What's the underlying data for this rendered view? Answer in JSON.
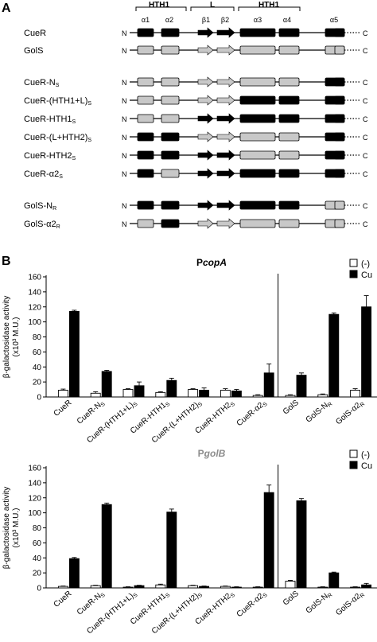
{
  "panel_a": {
    "label": "A",
    "domain_labels": {
      "hth1_left": "HTH1",
      "linker": "L",
      "hth1_right": "HTH1"
    },
    "element_labels": [
      "α1",
      "α2",
      "β1",
      "β2",
      "α3",
      "α4",
      "α5"
    ],
    "n_label": "N",
    "c_label": "C",
    "colors": {
      "cuer": "#000000",
      "gols": "#c8c8c8"
    },
    "rows": [
      {
        "label": "CueR",
        "segments": [
          "k",
          "k",
          "k",
          "k",
          "k",
          "k",
          "k",
          "k"
        ]
      },
      {
        "label": "GolS",
        "segments": [
          "g",
          "g",
          "g",
          "g",
          "g",
          "g",
          "g",
          "g"
        ]
      },
      {
        "label": "CueR-N",
        "sub": "S",
        "segments": [
          "g",
          "g",
          "g",
          "g",
          "g",
          "g",
          "k",
          "k"
        ]
      },
      {
        "label": "CueR-(HTH1+L)",
        "sub": "S",
        "segments": [
          "g",
          "g",
          "g",
          "g",
          "k",
          "k",
          "k",
          "k"
        ]
      },
      {
        "label": "CueR-HTH1",
        "sub": "S",
        "segments": [
          "g",
          "g",
          "k",
          "k",
          "k",
          "k",
          "k",
          "k"
        ]
      },
      {
        "label": "CueR-(L+HTH2)",
        "sub": "S",
        "segments": [
          "k",
          "k",
          "g",
          "g",
          "g",
          "g",
          "k",
          "k"
        ]
      },
      {
        "label": "CueR-HTH2",
        "sub": "S",
        "segments": [
          "k",
          "k",
          "k",
          "k",
          "g",
          "g",
          "k",
          "k"
        ]
      },
      {
        "label": "CueR-α2",
        "sub": "S",
        "segments": [
          "k",
          "g",
          "k",
          "k",
          "k",
          "k",
          "k",
          "k"
        ]
      },
      {
        "label": "GolS-N",
        "sub": "R",
        "segments": [
          "k",
          "k",
          "k",
          "k",
          "k",
          "k",
          "g",
          "g"
        ]
      },
      {
        "label": "GolS-α2",
        "sub": "R",
        "segments": [
          "g",
          "k",
          "g",
          "g",
          "g",
          "g",
          "g",
          "g"
        ]
      }
    ]
  },
  "panel_b": {
    "label": "B"
  },
  "chart_data": [
    {
      "type": "bar",
      "title_prefix": "P",
      "title_gene": "copA",
      "title_color": "#000000",
      "ylabel_line1": "β-galactosidase activity",
      "ylabel_line2": "(x10³ M.U.)",
      "ylim": [
        0,
        160
      ],
      "yticks": [
        "0",
        "20",
        "40",
        "60",
        "80",
        "100",
        "120",
        "140",
        "160"
      ],
      "categories": [
        {
          "main": "CueR",
          "sub": ""
        },
        {
          "main": "CueR-N",
          "sub": "S"
        },
        {
          "main": "CueR-(HTH1+L)",
          "sub": "S"
        },
        {
          "main": "CueR-HTH1",
          "sub": "S"
        },
        {
          "main": "CueR-(L+HTH2)",
          "sub": "S"
        },
        {
          "main": "CueR-HTH2",
          "sub": "S"
        },
        {
          "main": "CueR-α2",
          "sub": "S"
        },
        {
          "main": "GolS",
          "sub": ""
        },
        {
          "main": "GolS-N",
          "sub": "R"
        },
        {
          "main": "GolS-α2",
          "sub": "R"
        }
      ],
      "divider_after": 7,
      "series": [
        {
          "name": "(-)",
          "color": "#ffffff",
          "values": [
            9,
            5,
            10,
            6,
            10,
            9,
            2,
            2,
            3,
            9
          ],
          "errors": [
            1.5,
            2,
            1,
            1,
            1,
            2,
            1,
            1,
            1,
            2
          ]
        },
        {
          "name": "Cu",
          "color": "#000000",
          "values": [
            114,
            34,
            15,
            22,
            9,
            8,
            32,
            29,
            110,
            120
          ],
          "errors": [
            1.5,
            1.5,
            5,
            3,
            3,
            2,
            12,
            3,
            2,
            15
          ]
        }
      ],
      "legend": "top-right"
    },
    {
      "type": "bar",
      "title_prefix": "P",
      "title_gene": "golB",
      "title_color": "#8c8c8c",
      "ylabel_line1": "β-galactosidase activity",
      "ylabel_line2": "(x10³ M.U.)",
      "ylim": [
        0,
        160
      ],
      "yticks": [
        "0",
        "20",
        "40",
        "60",
        "80",
        "100",
        "120",
        "140",
        "160"
      ],
      "categories": [
        {
          "main": "CueR",
          "sub": ""
        },
        {
          "main": "CueR-N",
          "sub": "S"
        },
        {
          "main": "CueR-(HTH1+L)",
          "sub": "S"
        },
        {
          "main": "CueR-HTH1",
          "sub": "S"
        },
        {
          "main": "CueR-(L+HTH2)",
          "sub": "S"
        },
        {
          "main": "CueR-HTH2",
          "sub": "S"
        },
        {
          "main": "CueR-α2",
          "sub": "S"
        },
        {
          "main": "GolS",
          "sub": ""
        },
        {
          "main": "GolS-N",
          "sub": "R"
        },
        {
          "main": "GolS-α2",
          "sub": "R"
        }
      ],
      "divider_after": 7,
      "series": [
        {
          "name": "(-)",
          "color": "#ffffff",
          "values": [
            2,
            3,
            1,
            4,
            3,
            2,
            1,
            9,
            1,
            1
          ],
          "errors": [
            0.5,
            0.5,
            0.5,
            1,
            0.5,
            0.5,
            0.5,
            1,
            0.5,
            0.5
          ]
        },
        {
          "name": "Cu",
          "color": "#000000",
          "values": [
            39,
            111,
            3,
            101,
            2,
            1,
            127,
            116,
            20,
            4
          ],
          "errors": [
            1.5,
            2,
            0.5,
            4,
            0.5,
            0.5,
            10,
            3,
            1,
            2
          ]
        }
      ],
      "legend": "top-right"
    }
  ]
}
